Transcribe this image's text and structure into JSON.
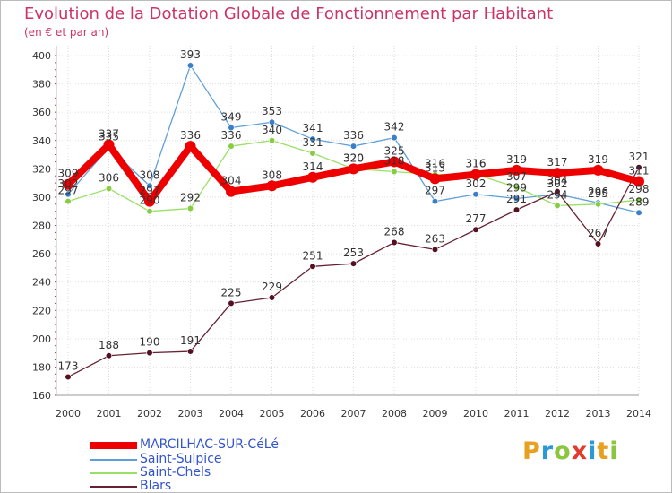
{
  "header": {
    "title": "Evolution de la Dotation Globale de Fonctionnement par Habitant",
    "subtitle": "(en € et par an)"
  },
  "logo": {
    "text": "Proxiti",
    "colors": [
      "#e8a020",
      "#2a9ad6",
      "#8cc63f",
      "#e23a2e",
      "#2a9ad6",
      "#e8a020",
      "#8cc63f"
    ]
  },
  "chart_data": {
    "type": "line",
    "title": "Evolution de la Dotation Globale de Fonctionnement par Habitant",
    "subtitle": "(en € et par an)",
    "xlabel": "",
    "ylabel": "",
    "categories": [
      "2000",
      "2001",
      "2002",
      "2003",
      "2004",
      "2005",
      "2006",
      "2007",
      "2008",
      "2009",
      "2010",
      "2011",
      "2012",
      "2013",
      "2014"
    ],
    "ylim": [
      160,
      400
    ],
    "yticks": [
      160,
      180,
      200,
      220,
      240,
      260,
      280,
      300,
      320,
      340,
      360,
      380,
      400
    ],
    "grid": true,
    "legend_position": "bottom-left",
    "series": [
      {
        "name": "MARCILHAC-SUR-CéLé",
        "color": "#ee0000",
        "values": [
          309,
          337,
          297,
          336,
          304,
          308,
          314,
          320,
          325,
          313,
          316,
          319,
          317,
          319,
          311
        ]
      },
      {
        "name": "Saint-Sulpice",
        "color": "#5f9fd9",
        "values": [
          302,
          335,
          308,
          393,
          349,
          353,
          341,
          336,
          342,
          297,
          302,
          299,
          302,
          296,
          289
        ]
      },
      {
        "name": "Saint-Chels",
        "color": "#99e066",
        "values": [
          297,
          306,
          290,
          292,
          336,
          340,
          331,
          320,
          318,
          316,
          316,
          307,
          294,
          295,
          298
        ]
      },
      {
        "name": "Blars",
        "color": "#662233",
        "values": [
          173,
          188,
          190,
          191,
          225,
          229,
          251,
          253,
          268,
          263,
          277,
          291,
          304,
          267,
          321
        ]
      }
    ]
  }
}
